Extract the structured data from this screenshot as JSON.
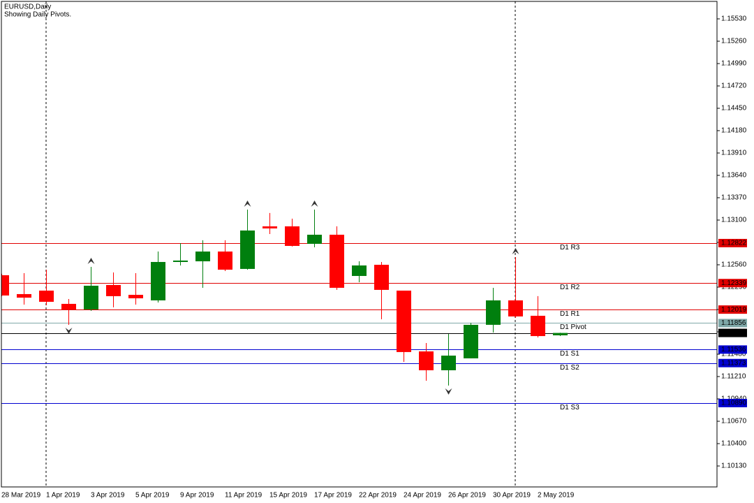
{
  "chart_data": {
    "type": "candlestick",
    "title": "EURUSD,Daily",
    "subtitle": "Showing Daily Pivots.",
    "categories": [
      "28 Mar 2019",
      null,
      "1 Apr 2019",
      null,
      "3 Apr 2019",
      null,
      "5 Apr 2019",
      null,
      "9 Apr 2019",
      null,
      "11 Apr 2019",
      null,
      "15 Apr 2019",
      null,
      "17 Apr 2019",
      null,
      "22 Apr 2019",
      null,
      "24 Apr 2019",
      null,
      "26 Apr 2019",
      null,
      "30 Apr 2019",
      null,
      "2 May 2019",
      null
    ],
    "open": [
      1.12434,
      1.12206,
      1.12248,
      1.12088,
      1.1202,
      1.12316,
      1.12197,
      1.1213,
      1.12594,
      1.12602,
      1.1272,
      1.1251,
      1.13024,
      1.13024,
      1.12813,
      1.12923,
      1.12425,
      1.1256,
      1.12248,
      1.11514,
      1.11286,
      1.1143,
      1.11835,
      1.1213,
      1.11944,
      1.11708
    ],
    "high": [
      1.12451,
      1.12459,
      1.12501,
      1.12147,
      1.12535,
      1.12467,
      1.12459,
      1.1272,
      1.12822,
      1.12856,
      1.12856,
      1.13227,
      1.13185,
      1.13117,
      1.13227,
      1.13024,
      1.12602,
      1.12594,
      1.12248,
      1.11615,
      1.11725,
      1.1186,
      1.12282,
      1.12653,
      1.12181,
      1.1174
    ],
    "low": [
      1.1218,
      1.12079,
      1.12071,
      1.11835,
      1.12003,
      1.12046,
      1.12079,
      1.12105,
      1.12552,
      1.12282,
      1.12484,
      1.12501,
      1.12931,
      1.1278,
      1.12771,
      1.12257,
      1.12349,
      1.11902,
      1.11387,
      1.1116,
      1.11101,
      1.1143,
      1.11742,
      1.11919,
      1.11683,
      1.117
    ],
    "close": [
      1.12189,
      1.12163,
      1.12113,
      1.1202,
      1.12307,
      1.12181,
      1.12155,
      1.12594,
      1.12611,
      1.1272,
      1.12501,
      1.12974,
      1.12999,
      1.12788,
      1.12923,
      1.12282,
      1.12552,
      1.12257,
      1.11506,
      1.11286,
      1.11463,
      1.11835,
      1.1213,
      1.11936,
      1.11699,
      1.11737
    ],
    "up_color": "#007f0e",
    "down_color": "#ff0000",
    "fractals": {
      "up": [
        4,
        11,
        14,
        23
      ],
      "down": [
        3,
        20
      ]
    },
    "separators": [
      2,
      23
    ],
    "ylim": [
      1.09877,
      1.15741
    ],
    "yticks": [
      {
        "value": 1.1013,
        "label": "1.10130"
      },
      {
        "value": 1.104,
        "label": "1.10400"
      },
      {
        "value": 1.1067,
        "label": "1.10670"
      },
      {
        "value": 1.1094,
        "label": "1.10940"
      },
      {
        "value": 1.1121,
        "label": "1.11210"
      },
      {
        "value": 1.1148,
        "label": "1.11480"
      },
      {
        "value": 1.1175,
        "label": "1.11750"
      },
      {
        "value": 1.1202,
        "label": "1.12020"
      },
      {
        "value": 1.1229,
        "label": "1.12290"
      },
      {
        "value": 1.1256,
        "label": "1.12560"
      },
      {
        "value": 1.1283,
        "label": "1.12830"
      },
      {
        "value": 1.131,
        "label": "1.13100"
      },
      {
        "value": 1.1337,
        "label": "1.13370"
      },
      {
        "value": 1.1364,
        "label": "1.13640"
      },
      {
        "value": 1.1391,
        "label": "1.13910"
      },
      {
        "value": 1.1418,
        "label": "1.14180"
      },
      {
        "value": 1.1445,
        "label": "1.14450"
      },
      {
        "value": 1.1472,
        "label": "1.14720"
      },
      {
        "value": 1.1499,
        "label": "1.14990"
      },
      {
        "value": 1.1526,
        "label": "1.15260"
      },
      {
        "value": 1.1553,
        "label": "1.15530"
      }
    ],
    "pivots": {
      "names": [
        "D1 R3",
        "D1 R2",
        "D1 R1",
        "D1 Pivot",
        "D1 S1",
        "D1 S2",
        "D1 S3"
      ],
      "values": [
        1.12822,
        1.12339,
        1.12019,
        1.11856,
        1.11536,
        1.11373,
        1.1089
      ],
      "value_labels": [
        "1.12822",
        "1.12339",
        "1.12019",
        "1.11856",
        "1.11536",
        "1.11373",
        "1.10890"
      ],
      "colors": [
        "#e00000",
        "#e00000",
        "#e00000",
        "#7fa8a8",
        "#0000d0",
        "#0000d0",
        "#0000d0"
      ]
    },
    "last_price": 1.11737
  }
}
